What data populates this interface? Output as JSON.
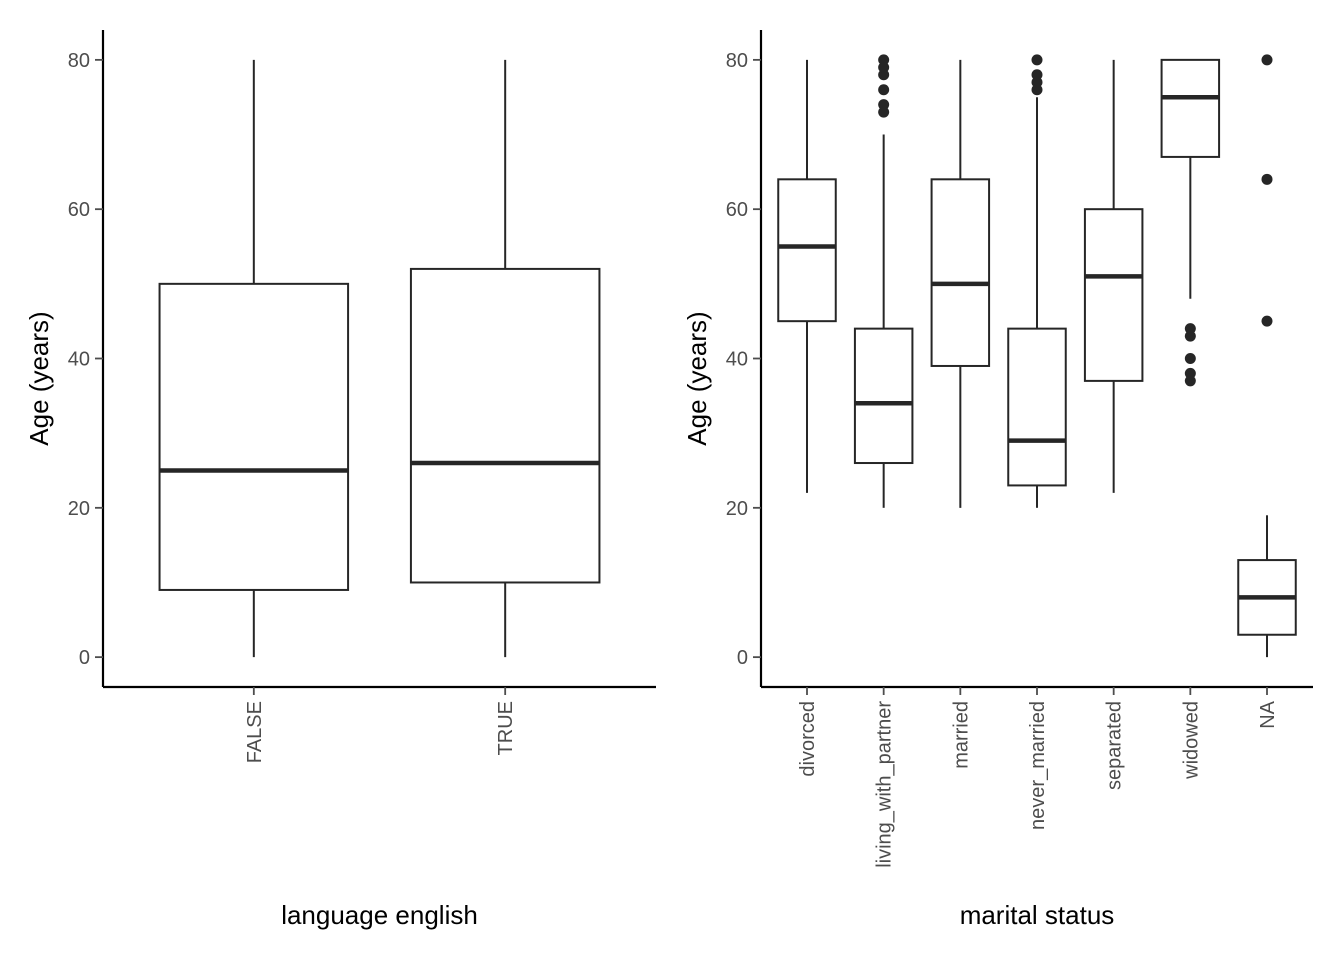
{
  "colors": {
    "ink": "#262626",
    "axis": "#000000",
    "tick_text": "#4d4d4d",
    "box_fill": "#ffffff"
  },
  "chart_data": [
    {
      "type": "boxplot",
      "xlabel": "language english",
      "ylabel": "Age (years)",
      "ylim": [
        -4,
        84
      ],
      "yticks": [
        0,
        20,
        40,
        60,
        80
      ],
      "grid": false,
      "legend": "none",
      "categories": [
        "FALSE",
        "TRUE"
      ],
      "boxes": [
        {
          "category": "FALSE",
          "whisker_low": 0,
          "q1": 9,
          "median": 25,
          "q3": 50,
          "whisker_high": 80,
          "outliers": []
        },
        {
          "category": "TRUE",
          "whisker_low": 0,
          "q1": 10,
          "median": 26,
          "q3": 52,
          "whisker_high": 80,
          "outliers": []
        }
      ]
    },
    {
      "type": "boxplot",
      "xlabel": "marital status",
      "ylabel": "Age (years)",
      "ylim": [
        -4,
        84
      ],
      "yticks": [
        0,
        20,
        40,
        60,
        80
      ],
      "grid": false,
      "legend": "none",
      "categories": [
        "divorced",
        "living_with_partner",
        "married",
        "never_married",
        "separated",
        "widowed",
        "NA"
      ],
      "boxes": [
        {
          "category": "divorced",
          "whisker_low": 22,
          "q1": 45,
          "median": 55,
          "q3": 64,
          "whisker_high": 80,
          "outliers": []
        },
        {
          "category": "living_with_partner",
          "whisker_low": 20,
          "q1": 26,
          "median": 34,
          "q3": 44,
          "whisker_high": 70,
          "outliers": [
            73,
            74,
            76,
            78,
            79,
            80
          ]
        },
        {
          "category": "married",
          "whisker_low": 20,
          "q1": 39,
          "median": 50,
          "q3": 64,
          "whisker_high": 80,
          "outliers": []
        },
        {
          "category": "never_married",
          "whisker_low": 20,
          "q1": 23,
          "median": 29,
          "q3": 44,
          "whisker_high": 75,
          "outliers": [
            76,
            77,
            78,
            80
          ]
        },
        {
          "category": "separated",
          "whisker_low": 22,
          "q1": 37,
          "median": 51,
          "q3": 60,
          "whisker_high": 80,
          "outliers": []
        },
        {
          "category": "widowed",
          "whisker_low": 48,
          "q1": 67,
          "median": 75,
          "q3": 80,
          "whisker_high": 80,
          "outliers": [
            37,
            38,
            40,
            43,
            44
          ]
        },
        {
          "category": "NA",
          "whisker_low": 0,
          "q1": 3,
          "median": 8,
          "q3": 13,
          "whisker_high": 19,
          "outliers": [
            45,
            64,
            80
          ]
        }
      ]
    }
  ]
}
